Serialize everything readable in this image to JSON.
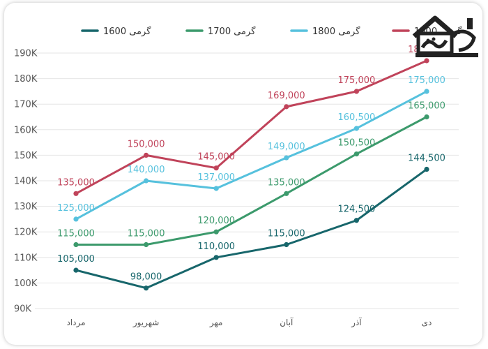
{
  "chart_data": {
    "type": "line",
    "categories": [
      "مرداد",
      "شهریور",
      "مهر",
      "آبان",
      "آذر",
      "دی"
    ],
    "series": [
      {
        "name": "گرمی 1600",
        "color": "#17666b",
        "values": [
          105000,
          98000,
          110000,
          115000,
          124500,
          144500
        ],
        "labels": [
          "105,000",
          "98,000",
          "110,000",
          "115,000",
          "124,500",
          "144,500"
        ]
      },
      {
        "name": "گرمی 1700",
        "color": "#3c9a6c",
        "values": [
          115000,
          115000,
          120000,
          135000,
          150500,
          165000
        ],
        "labels": [
          "115,000",
          "115,000",
          "120,000",
          "135,000",
          "150,500",
          "165,000"
        ]
      },
      {
        "name": "گرمی 1800",
        "color": "#56c1dd",
        "values": [
          125000,
          140000,
          137000,
          149000,
          160500,
          175000
        ],
        "labels": [
          "125,000",
          "140,000",
          "137,000",
          "149,000",
          "160,500",
          "175,000"
        ]
      },
      {
        "name": "گرمی 1900",
        "color": "#c0435a",
        "values": [
          135000,
          150000,
          145000,
          169000,
          175000,
          187000
        ],
        "labels": [
          "135,000",
          "150,000",
          "145,000",
          "169,000",
          "175,000",
          "187,000"
        ]
      }
    ],
    "y_ticks": [
      "90K",
      "100K",
      "110K",
      "120K",
      "130K",
      "140K",
      "150K",
      "160K",
      "170K",
      "180K",
      "190K"
    ],
    "y_tick_values": [
      90000,
      100000,
      110000,
      120000,
      130000,
      140000,
      150000,
      160000,
      170000,
      180000,
      190000
    ],
    "ylim": [
      90000,
      190000
    ],
    "grid": true,
    "legend": "top",
    "title": "",
    "xlabel": "",
    "ylabel": ""
  },
  "logo": {
    "icon": "house-logo-icon",
    "color": "#222222"
  }
}
